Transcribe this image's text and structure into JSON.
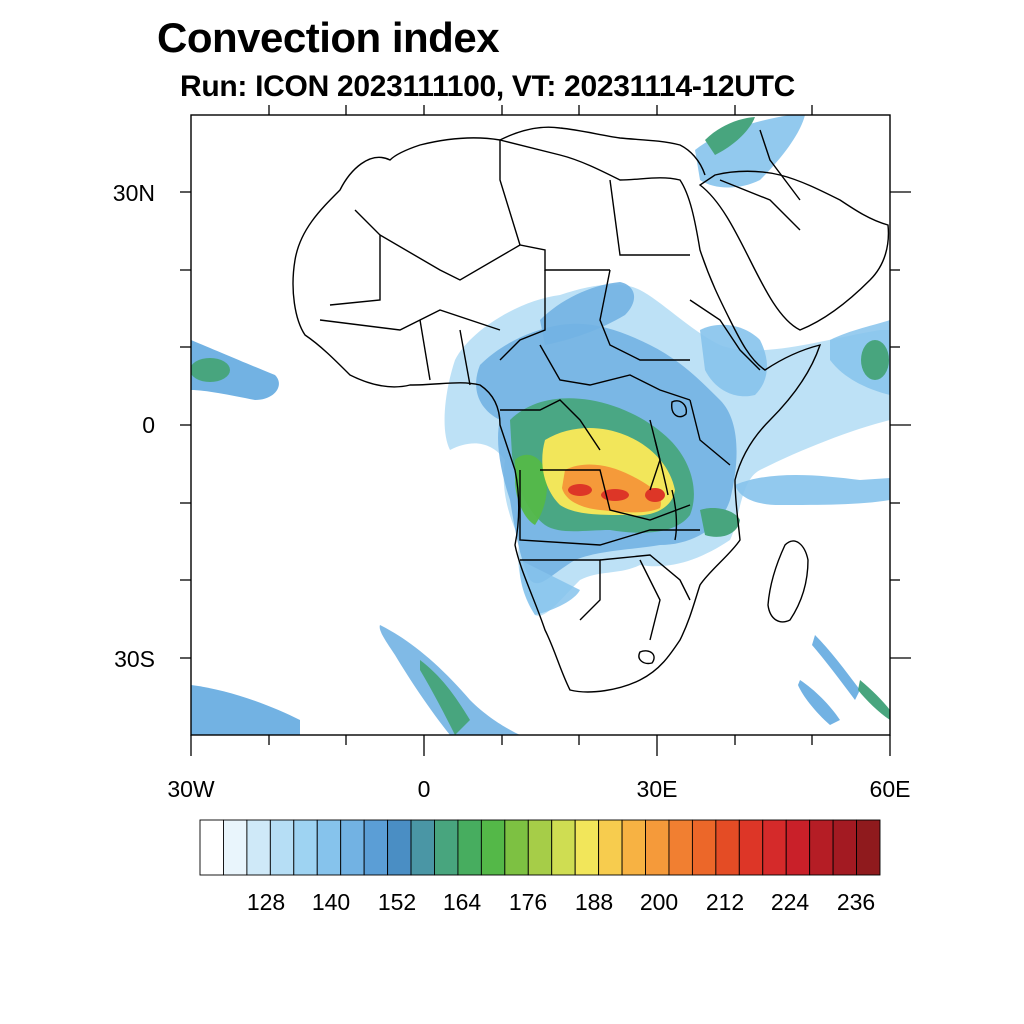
{
  "title": "Convection index",
  "subtitle": "Run: ICON 2023111100,  VT: 20231114-12UTC",
  "axes": {
    "lat_labels": [
      "30N",
      "0",
      "30S"
    ],
    "lon_labels": [
      "30W",
      "0",
      "30E",
      "60E"
    ]
  },
  "colorbar": {
    "colors": [
      "#ffffff",
      "#e9f5fc",
      "#cfe9f8",
      "#b6def5",
      "#9ed3f2",
      "#86c3ec",
      "#72b2e3",
      "#5b9ed6",
      "#4a8ec4",
      "#4a96a5",
      "#48a57e",
      "#47ad5f",
      "#54b848",
      "#7dc142",
      "#a6cd48",
      "#cfdd52",
      "#f2e65a",
      "#f7cc4e",
      "#f7b243",
      "#f59a3a",
      "#f17f31",
      "#ec6729",
      "#e44c25",
      "#dd3627",
      "#d52a2a",
      "#c92029",
      "#b51d25",
      "#a31a22",
      "#8f1a1d"
    ],
    "tick_labels": [
      "128",
      "140",
      "152",
      "164",
      "176",
      "188",
      "200",
      "212",
      "224",
      "236"
    ]
  }
}
